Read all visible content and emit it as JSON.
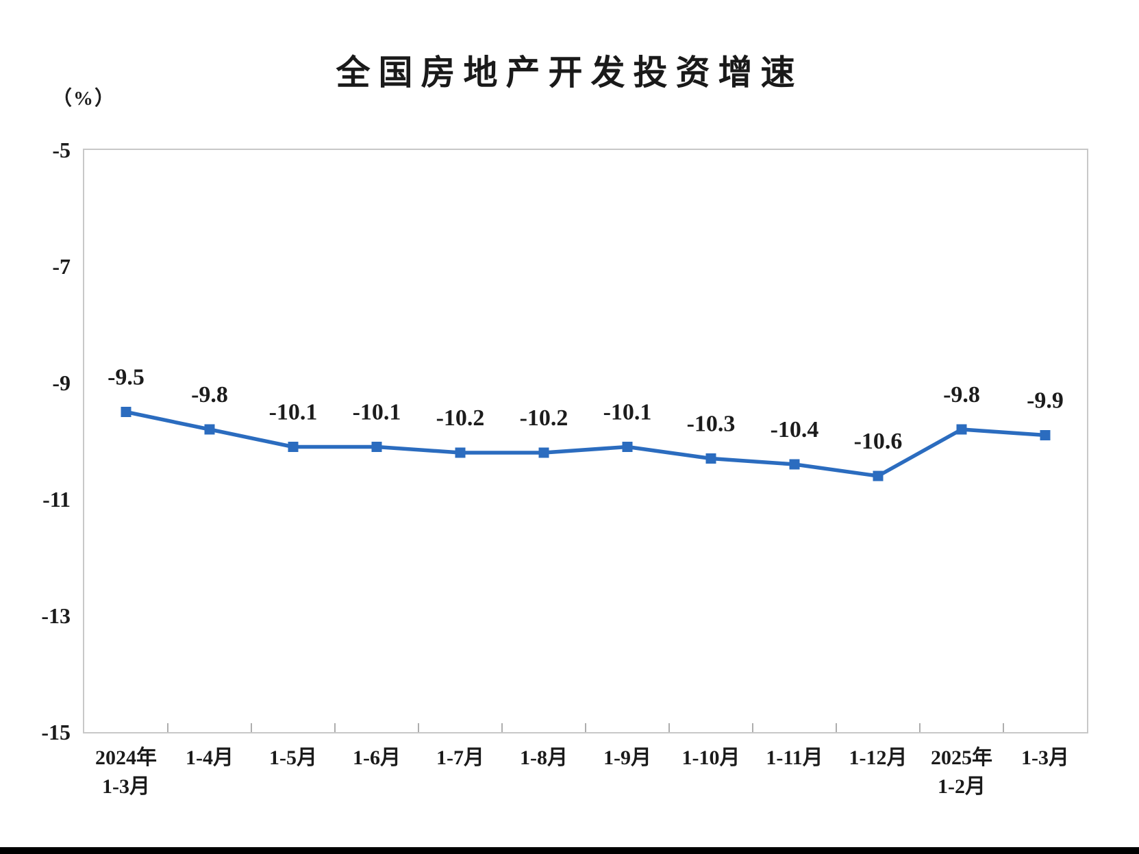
{
  "title": "全国房地产开发投资增速",
  "unit_label": "（%）",
  "chart_data": {
    "type": "line",
    "title": "全国房地产开发投资增速",
    "ylabel": "（%）",
    "categories": [
      "2024年\n1-3月",
      "1-4月",
      "1-5月",
      "1-6月",
      "1-7月",
      "1-8月",
      "1-9月",
      "1-10月",
      "1-11月",
      "1-12月",
      "2025年\n1-2月",
      "1-3月"
    ],
    "values": [
      -9.5,
      -9.8,
      -10.1,
      -10.1,
      -10.2,
      -10.2,
      -10.1,
      -10.3,
      -10.4,
      -10.6,
      -9.8,
      -9.9
    ],
    "data_labels": [
      "-9.5",
      "-9.8",
      "-10.1",
      "-10.1",
      "-10.2",
      "-10.2",
      "-10.1",
      "-10.3",
      "-10.4",
      "-10.6",
      "-9.8",
      "-9.9"
    ],
    "yticks": [
      "-5",
      "-7",
      "-9",
      "-11",
      "-13",
      "-15"
    ],
    "ylim": [
      -15,
      -5
    ],
    "grid": false,
    "legend": "none",
    "line_color": "#2b6cbf",
    "marker": "square",
    "axis_border_color": "#c8c8c8",
    "tick_color": "#adadad",
    "label_color": "#1c1c1c"
  }
}
